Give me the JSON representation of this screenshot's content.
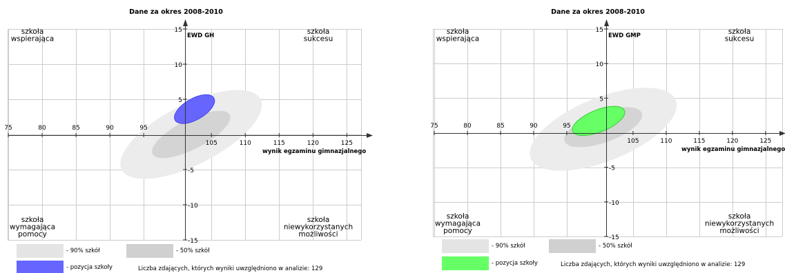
{
  "chart_data": [
    {
      "type": "scatter",
      "title": "Dane za okres 2008-2010",
      "ewd_label": "EWD GH",
      "xlabel": "wynik egzaminu gimnazjalnego",
      "ylabel": "",
      "xlim": [
        75,
        127
      ],
      "ylim": [
        -15,
        15
      ],
      "x_ticks": [
        75,
        80,
        85,
        90,
        95,
        105,
        110,
        115,
        120,
        125
      ],
      "y_ticks": [
        15,
        10,
        5,
        -5,
        -10,
        -15
      ],
      "grid": true,
      "quadrants": {
        "top_left": [
          "szkoła",
          "wspierająca"
        ],
        "top_right": [
          "szkoła",
          "sukcesu"
        ],
        "bottom_left": [
          "szkoła",
          "wymagająca",
          "pomocy"
        ],
        "bottom_right": [
          "szkoła",
          "niewykorzystanych",
          "możliwości"
        ]
      },
      "regions": [
        {
          "name": "- 90% szkół",
          "cx": 102,
          "cy": 0,
          "rx": 11.5,
          "ry": 4.3,
          "angle_deg": -27,
          "color": "#ececec"
        },
        {
          "name": "- 50% szkół",
          "cx": 102,
          "cy": 0,
          "rx": 6.4,
          "ry": 2.1,
          "angle_deg": -27,
          "color": "#d4d4d4"
        },
        {
          "name": "- pozycja szkoły",
          "cx": 102.5,
          "cy": 3.6,
          "rx": 3.3,
          "ry": 1.5,
          "angle_deg": -30,
          "color": "#6666ff"
        }
      ],
      "legend": {
        "items": [
          "- 90% szkół",
          "- 50% szkół",
          "- pozycja szkoły"
        ],
        "colors": [
          "#e4e4e4",
          "#d0d0d0",
          "#6666ff"
        ],
        "note": "Liczba zdających, których wyniki uwzględniono w analizie: 129"
      }
    },
    {
      "type": "scatter",
      "title": "Dane za okres 2008-2010",
      "ewd_label": "EWD GMP",
      "xlabel": "wynik egzaminu gimnazjalnego",
      "ylabel": "",
      "xlim": [
        75,
        127
      ],
      "ylim": [
        -15,
        15
      ],
      "x_ticks": [
        75,
        80,
        85,
        90,
        95,
        105,
        110,
        115,
        120,
        125
      ],
      "y_ticks": [
        15,
        10,
        5,
        -5,
        -10,
        -15
      ],
      "grid": true,
      "quadrants": {
        "top_left": [
          "szkoła",
          "wspierająca"
        ],
        "top_right": [
          "szkoła",
          "sukcesu"
        ],
        "bottom_left": [
          "szkoła",
          "wymagająca",
          "pomocy"
        ],
        "bottom_right": [
          "szkoła",
          "niewykorzystanych",
          "możliwości"
        ]
      },
      "regions": [
        {
          "name": "- 90% szkół",
          "cx": 100.5,
          "cy": 0.5,
          "rx": 11.8,
          "ry": 4.6,
          "angle_deg": -22,
          "color": "#ececec"
        },
        {
          "name": "- 50% szkół",
          "cx": 100.5,
          "cy": 0.8,
          "rx": 6.2,
          "ry": 2.2,
          "angle_deg": -20,
          "color": "#d4d4d4"
        },
        {
          "name": "- pozycja szkoły",
          "cx": 99.8,
          "cy": 1.7,
          "rx": 4.2,
          "ry": 1.6,
          "angle_deg": -22,
          "color": "#66ff66"
        }
      ],
      "legend": {
        "items": [
          "- 90% szkół",
          "- 50% szkół",
          "- pozycja szkoły"
        ],
        "colors": [
          "#e4e4e4",
          "#d0d0d0",
          "#66ff66"
        ],
        "note": "Liczba zdających, których wyniki uwzględniono w analizie: 129"
      }
    }
  ]
}
